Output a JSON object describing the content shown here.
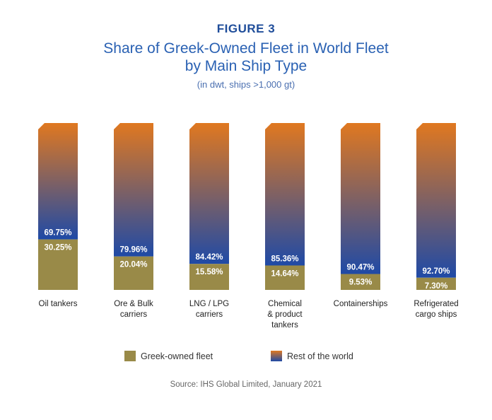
{
  "figure_label": "FIGURE 3",
  "title_line1": "Share of Greek-Owned Fleet in World Fleet",
  "title_line2": "by Main Ship Type",
  "subtitle": "(in dwt, ships >1,000 gt)",
  "source": "Source: IHS Global Limited, January 2021",
  "colors": {
    "greek": "#998a48",
    "rest_top": "#e07820",
    "rest_bottom": "#1f4aa6",
    "title": "#2a61b3"
  },
  "legend": {
    "greek": "Greek-owned fleet",
    "rest": "Rest of the world"
  },
  "chart_data": {
    "type": "bar",
    "stacked": true,
    "unit": "%",
    "ylim": [
      0,
      100
    ],
    "categories": [
      "Oil tankers",
      "Ore & Bulk\ncarriers",
      "LNG / LPG\ncarriers",
      "Chemical\n& product\ntankers",
      "Containerships",
      "Refrigerated\ncargo ships"
    ],
    "series": [
      {
        "name": "Greek-owned fleet",
        "values": [
          30.25,
          20.04,
          15.58,
          14.64,
          9.53,
          7.3
        ],
        "labels": [
          "30.25%",
          "20.04%",
          "15.58%",
          "14.64%",
          "9.53%",
          "7.30%"
        ]
      },
      {
        "name": "Rest of the world",
        "values": [
          69.75,
          79.96,
          84.42,
          85.36,
          90.47,
          92.7
        ],
        "labels": [
          "69.75%",
          "79.96%",
          "84.42%",
          "85.36%",
          "90.47%",
          "92.70%"
        ]
      }
    ]
  }
}
